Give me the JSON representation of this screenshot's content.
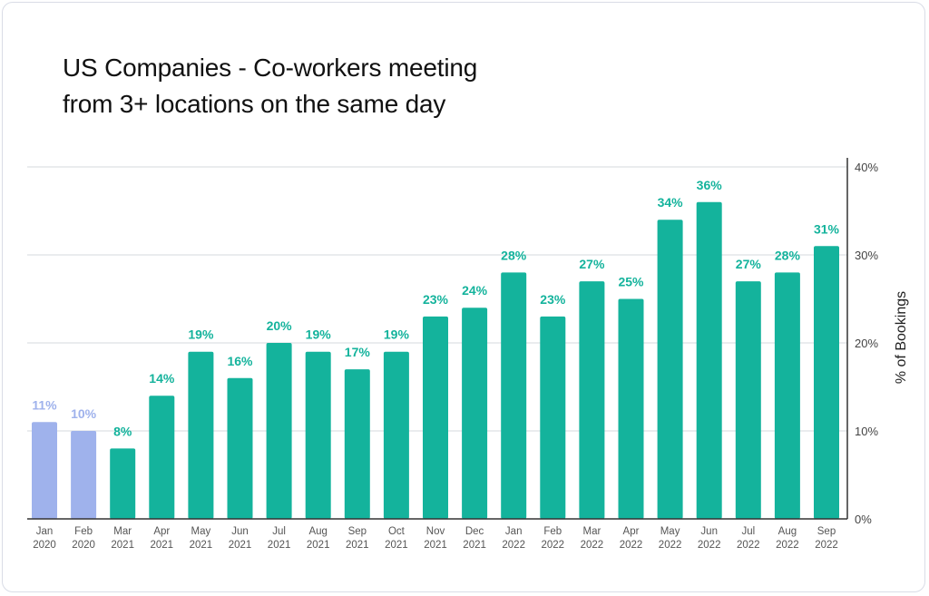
{
  "chart_data": {
    "type": "bar",
    "title": "US Companies - Co-workers meeting from 3+ locations on the same day",
    "title_lines": [
      "US Companies - Co-workers meeting",
      "from 3+ locations on the same day"
    ],
    "ylabel": "% of Bookings",
    "xlabel": "",
    "ylim": [
      0,
      40
    ],
    "yticks": [
      0,
      10,
      20,
      30,
      40
    ],
    "ytick_labels": [
      "0%",
      "10%",
      "20%",
      "30%",
      "40%"
    ],
    "y_axis_position": "right",
    "grid": true,
    "categories": [
      [
        "Jan",
        "2020"
      ],
      [
        "Feb",
        "2020"
      ],
      [
        "Mar",
        "2021"
      ],
      [
        "Apr",
        "2021"
      ],
      [
        "May",
        "2021"
      ],
      [
        "Jun",
        "2021"
      ],
      [
        "Jul",
        "2021"
      ],
      [
        "Aug",
        "2021"
      ],
      [
        "Sep",
        "2021"
      ],
      [
        "Oct",
        "2021"
      ],
      [
        "Nov",
        "2021"
      ],
      [
        "Dec",
        "2021"
      ],
      [
        "Jan",
        "2022"
      ],
      [
        "Feb",
        "2022"
      ],
      [
        "Mar",
        "2022"
      ],
      [
        "Apr",
        "2022"
      ],
      [
        "May",
        "2022"
      ],
      [
        "Jun",
        "2022"
      ],
      [
        "Jul",
        "2022"
      ],
      [
        "Aug",
        "2022"
      ],
      [
        "Sep",
        "2022"
      ]
    ],
    "values": [
      11,
      10,
      8,
      14,
      19,
      16,
      20,
      19,
      17,
      19,
      23,
      24,
      28,
      23,
      27,
      25,
      34,
      36,
      27,
      28,
      31
    ],
    "data_labels": [
      "11%",
      "10%",
      "8%",
      "14%",
      "19%",
      "16%",
      "20%",
      "19%",
      "17%",
      "19%",
      "23%",
      "24%",
      "28%",
      "23%",
      "27%",
      "25%",
      "34%",
      "36%",
      "27%",
      "28%",
      "31%"
    ],
    "highlight_groups": [
      "2020",
      "2020",
      "2021",
      "2021",
      "2021",
      "2021",
      "2021",
      "2021",
      "2021",
      "2021",
      "2021",
      "2021",
      "2022",
      "2022",
      "2022",
      "2022",
      "2022",
      "2022",
      "2022",
      "2022",
      "2022"
    ],
    "colors": {
      "pre": "#9fb2ec",
      "post": "#14b39c",
      "grid": "#d5d8dd",
      "axis": "#333333"
    }
  }
}
